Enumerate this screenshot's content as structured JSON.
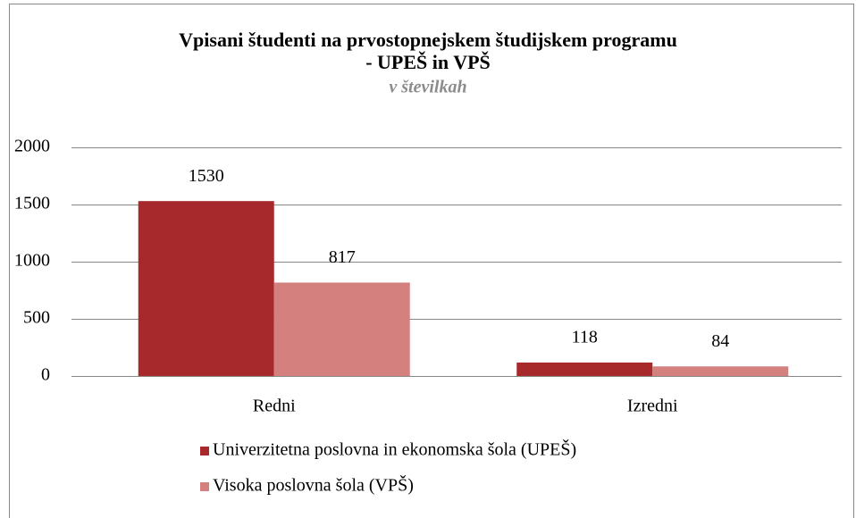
{
  "chart_data": {
    "type": "bar",
    "title": [
      "Vpisani študenti na prvostopnejskem študijskem programu",
      "- UPEŠ in VPŠ"
    ],
    "subtitle": "v številkah",
    "categories": [
      "Redni",
      "Izredni"
    ],
    "series": [
      {
        "name": "Univerzitetna poslovna in ekonomska šola (UPEŠ)",
        "color": "#a8292b",
        "values": [
          1530,
          118
        ]
      },
      {
        "name": "Visoka poslovna šola (VPŠ)",
        "color": "#d4807f",
        "values": [
          817,
          84
        ]
      }
    ],
    "ylim": [
      0,
      2000
    ],
    "yticks": [
      0,
      500,
      1000,
      1500,
      2000
    ],
    "grid": true,
    "legend": "bottom"
  }
}
